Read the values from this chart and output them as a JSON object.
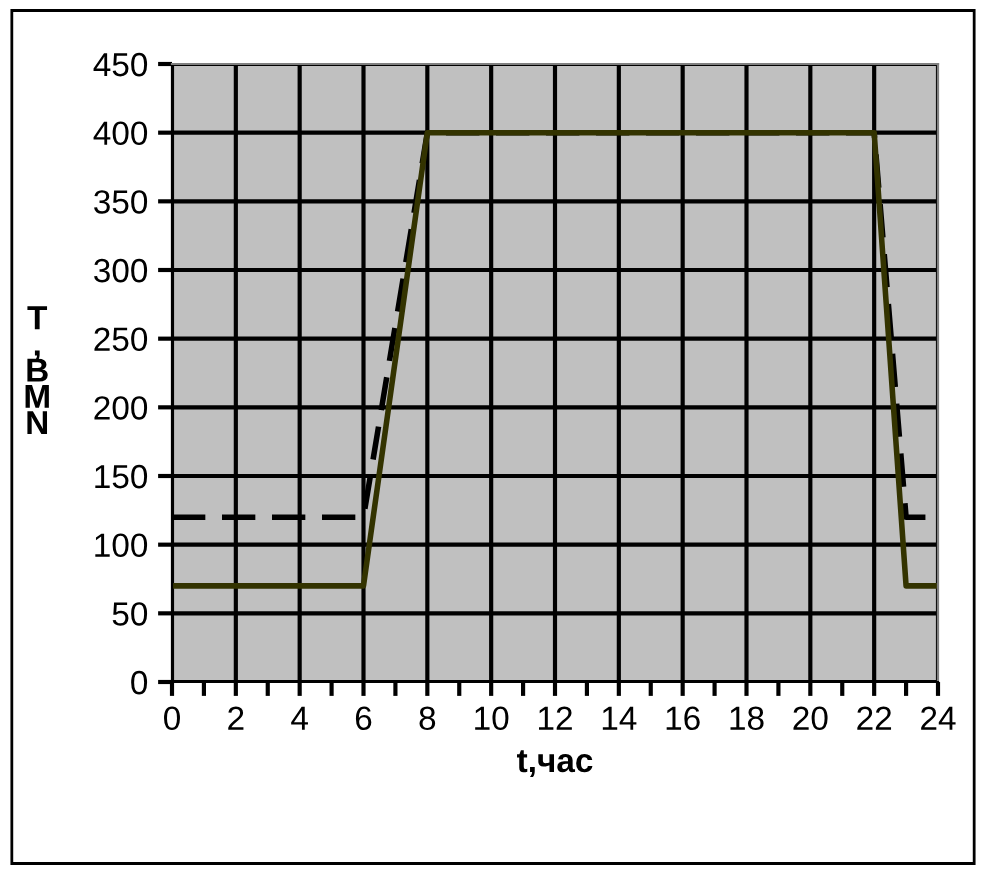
{
  "chart_data": {
    "type": "line",
    "xlabel": "t,час",
    "ylabel": "Т,ВМN",
    "series": [
      {
        "x": [
          0,
          6,
          8,
          22,
          23,
          24
        ],
        "values": [
          120,
          120,
          400,
          400,
          120,
          120
        ],
        "color": "#000000",
        "line_style": "dashed"
      },
      {
        "x": [
          0,
          6,
          8,
          22,
          23,
          24
        ],
        "values": [
          70,
          70,
          400,
          400,
          70,
          70
        ],
        "color": "#333300",
        "line_style": "solid"
      }
    ],
    "xlim": [
      0,
      24
    ],
    "xticks": [
      0,
      2,
      4,
      6,
      8,
      10,
      12,
      14,
      16,
      18,
      20,
      22,
      24
    ],
    "ylim": [
      0,
      450
    ],
    "yticks": [
      0,
      50,
      100,
      150,
      200,
      250,
      300,
      350,
      400,
      450
    ],
    "grid": true,
    "legend": false,
    "marker": "none"
  }
}
